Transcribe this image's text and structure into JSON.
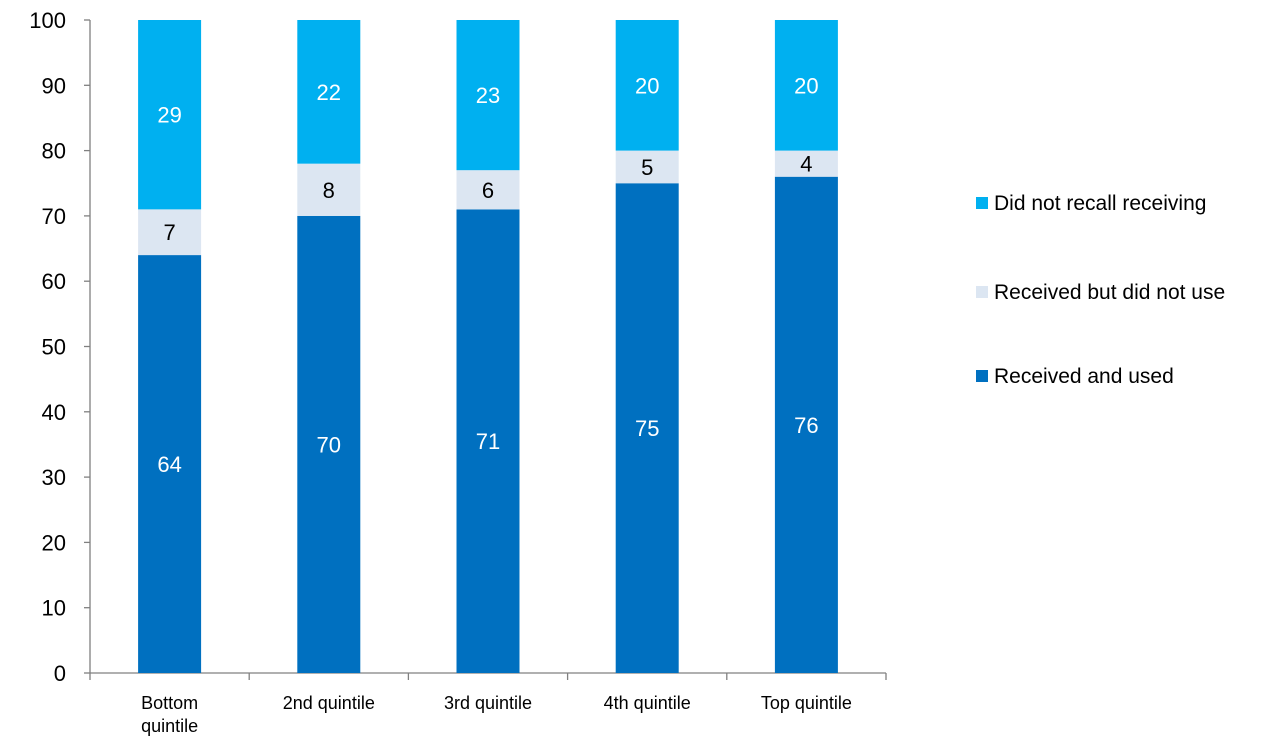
{
  "chart_data": {
    "type": "bar",
    "stacked": true,
    "categories": [
      "Bottom quintile",
      "2nd quintile",
      "3rd quintile",
      "4th quintile",
      "Top quintile"
    ],
    "series": [
      {
        "name": "Received and used",
        "values": [
          64,
          70,
          71,
          75,
          76
        ],
        "color": "#0070C0",
        "label_color": "#ffffff"
      },
      {
        "name": "Received but did not use",
        "values": [
          7,
          8,
          6,
          5,
          4
        ],
        "color": "#DCE6F2",
        "label_color": "#000000"
      },
      {
        "name": "Did not recall receiving",
        "values": [
          29,
          22,
          23,
          20,
          20
        ],
        "color": "#00B0F0",
        "label_color": "#ffffff"
      }
    ],
    "legend_order": [
      "Did not recall receiving",
      "Received but did not use",
      "Received and used"
    ],
    "yticks": [
      0,
      10,
      20,
      30,
      40,
      50,
      60,
      70,
      80,
      90,
      100
    ],
    "ylim": [
      0,
      100
    ],
    "title": "",
    "xlabel": "",
    "ylabel": "",
    "grid": false,
    "legend_position": "right"
  }
}
